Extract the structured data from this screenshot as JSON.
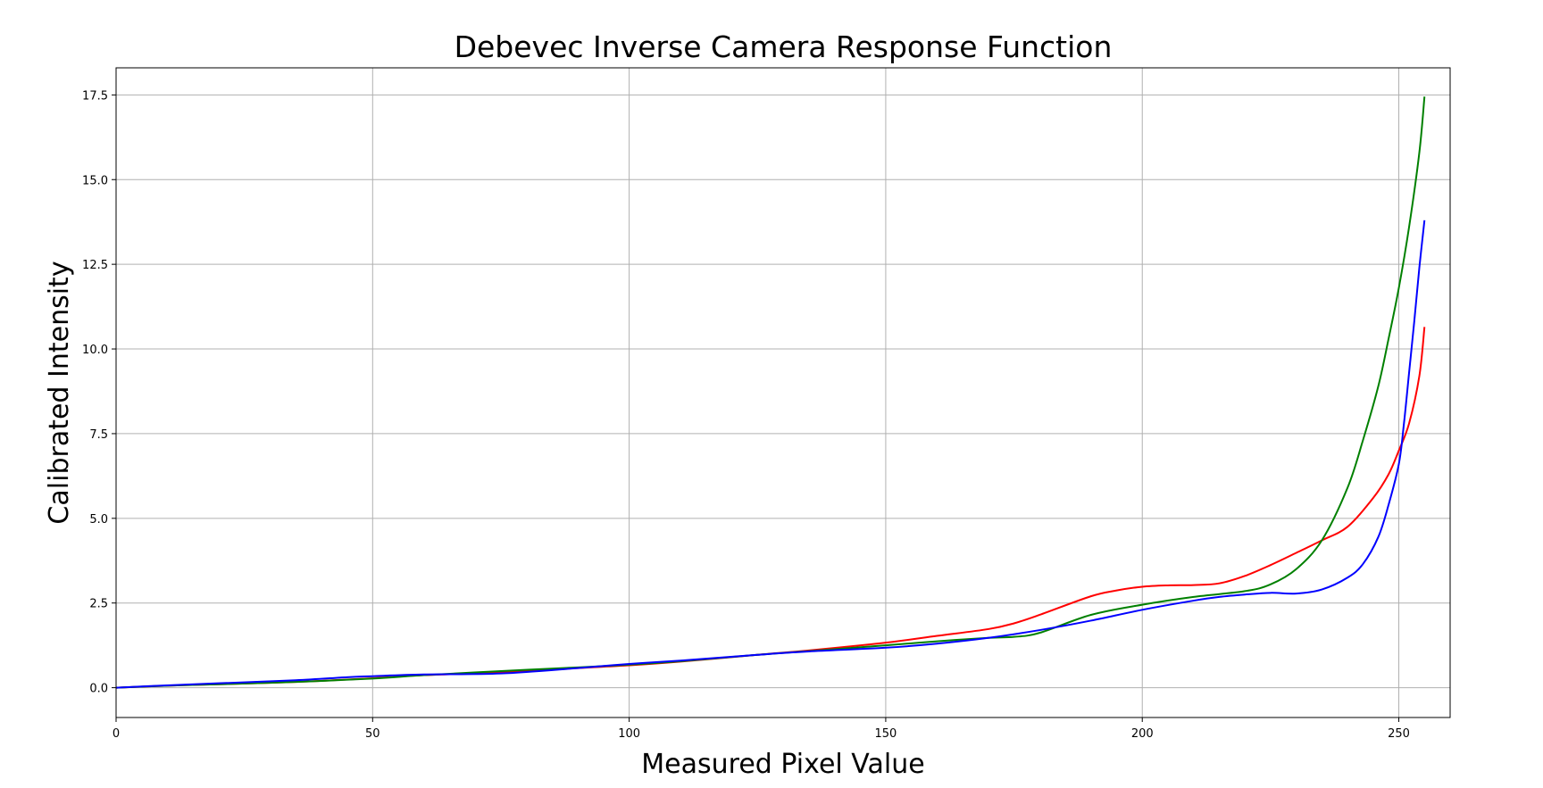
{
  "chart_data": {
    "type": "line",
    "title": "Debevec Inverse Camera Response Function",
    "xlabel": "Measured Pixel Value",
    "ylabel": "Calibrated Intensity",
    "xlim": [
      0,
      260
    ],
    "ylim": [
      -0.88,
      18.3
    ],
    "xticks": [
      0,
      50,
      100,
      150,
      200,
      250
    ],
    "yticks": [
      0.0,
      2.5,
      5.0,
      7.5,
      10.0,
      12.5,
      15.0,
      17.5
    ],
    "xtick_labels": [
      "0",
      "50",
      "100",
      "150",
      "200",
      "250"
    ],
    "ytick_labels": [
      "0.0",
      "2.5",
      "5.0",
      "7.5",
      "10.0",
      "12.5",
      "15.0",
      "17.5"
    ],
    "grid": true,
    "legend": null,
    "series": [
      {
        "color": "#ff0000",
        "x": [
          0,
          10,
          20,
          35,
          50,
          60,
          75,
          90,
          100,
          110,
          125,
          135,
          150,
          160,
          170,
          175,
          180,
          190,
          195,
          200,
          205,
          210,
          215,
          220,
          225,
          230,
          235,
          240,
          245,
          248,
          250,
          252,
          254,
          255
        ],
        "y": [
          0.0,
          0.06,
          0.1,
          0.17,
          0.28,
          0.37,
          0.45,
          0.58,
          0.66,
          0.77,
          0.97,
          1.1,
          1.33,
          1.53,
          1.73,
          1.9,
          2.15,
          2.7,
          2.87,
          2.98,
          3.02,
          3.03,
          3.08,
          3.3,
          3.62,
          3.98,
          4.35,
          4.75,
          5.6,
          6.3,
          7.0,
          7.8,
          9.2,
          10.65
        ]
      },
      {
        "color": "#008000",
        "x": [
          0,
          10,
          20,
          35,
          50,
          60,
          75,
          90,
          100,
          110,
          125,
          135,
          150,
          160,
          170,
          175,
          180,
          190,
          200,
          210,
          220,
          225,
          230,
          235,
          240,
          243,
          246,
          248,
          250,
          252,
          254,
          255
        ],
        "y": [
          0.0,
          0.06,
          0.1,
          0.17,
          0.27,
          0.37,
          0.49,
          0.6,
          0.68,
          0.78,
          0.97,
          1.08,
          1.25,
          1.37,
          1.47,
          1.5,
          1.62,
          2.15,
          2.45,
          2.68,
          2.85,
          3.05,
          3.5,
          4.35,
          5.9,
          7.3,
          8.9,
          10.3,
          11.8,
          13.6,
          15.8,
          17.45
        ]
      },
      {
        "color": "#0000ff",
        "x": [
          0,
          10,
          20,
          35,
          45,
          50,
          60,
          75,
          90,
          100,
          110,
          125,
          135,
          150,
          160,
          170,
          180,
          190,
          200,
          210,
          215,
          220,
          225,
          230,
          235,
          240,
          243,
          246,
          248,
          250,
          251,
          252,
          253,
          254,
          255
        ],
        "y": [
          0.0,
          0.07,
          0.13,
          0.22,
          0.31,
          0.34,
          0.39,
          0.42,
          0.58,
          0.7,
          0.8,
          0.97,
          1.07,
          1.18,
          1.3,
          1.47,
          1.7,
          1.98,
          2.3,
          2.57,
          2.68,
          2.75,
          2.8,
          2.78,
          2.9,
          3.25,
          3.65,
          4.45,
          5.4,
          6.6,
          7.8,
          9.3,
          10.8,
          12.4,
          13.8
        ]
      }
    ]
  }
}
